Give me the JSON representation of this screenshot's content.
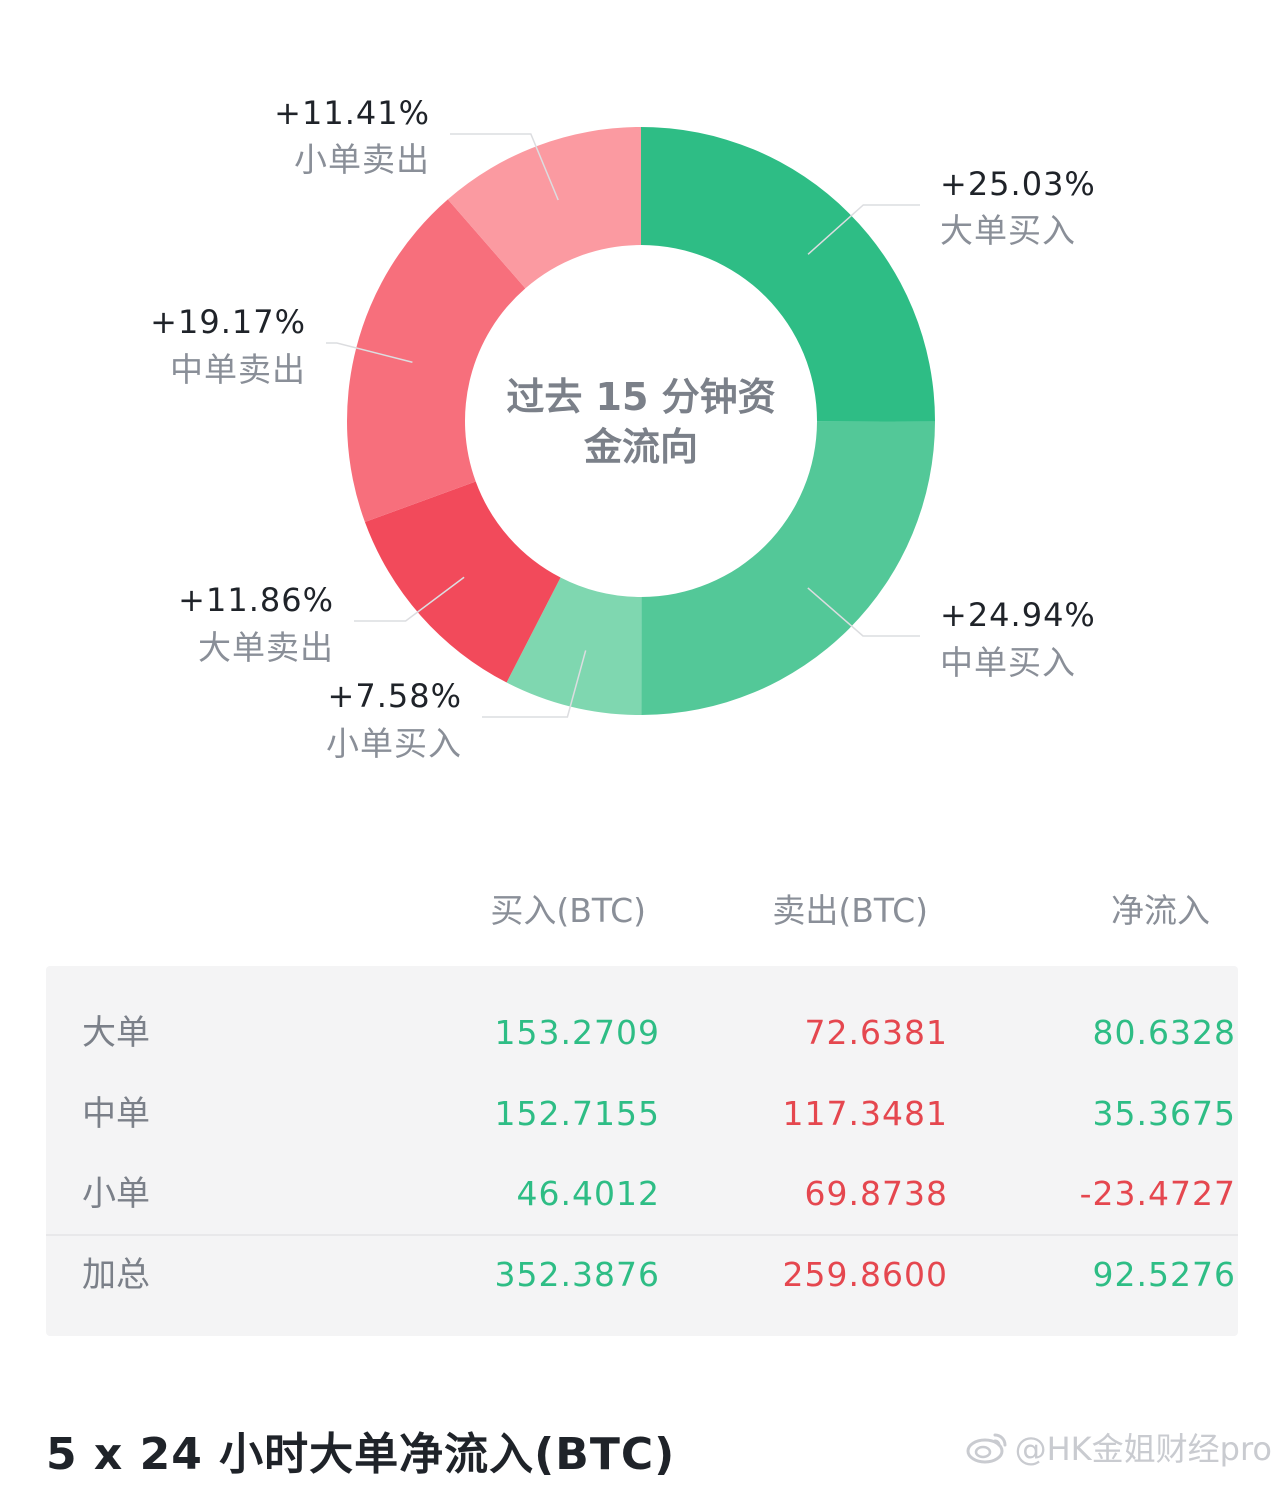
{
  "chart_data": {
    "type": "pie",
    "title": "过去 15 分钟资金流向",
    "title_lines": [
      "过去 15 分钟资",
      "金流向"
    ],
    "slices": [
      {
        "label": "大单买入",
        "value": 25.03,
        "pct_text": "+25.03%",
        "color": "#2ebd85"
      },
      {
        "label": "中单买入",
        "value": 24.94,
        "pct_text": "+24.94%",
        "color": "#53c898"
      },
      {
        "label": "小单买入",
        "value": 7.58,
        "pct_text": "+7.58%",
        "color": "#7fd7b0"
      },
      {
        "label": "大单卖出",
        "value": 11.86,
        "pct_text": "+11.86%",
        "color": "#f24a5b"
      },
      {
        "label": "中单卖出",
        "value": 19.17,
        "pct_text": "+19.17%",
        "color": "#f76f7c"
      },
      {
        "label": "小单卖出",
        "value": 11.41,
        "pct_text": "+11.41%",
        "color": "#fb9aa1"
      }
    ]
  },
  "table": {
    "headers": {
      "buy": "买入(BTC)",
      "sell": "卖出(BTC)",
      "net": "净流入"
    },
    "rows": [
      {
        "name": "大单",
        "buy": "153.2709",
        "sell": "72.6381",
        "net": "80.6328"
      },
      {
        "name": "中单",
        "buy": "152.7155",
        "sell": "117.3481",
        "net": "35.3675"
      },
      {
        "name": "小单",
        "buy": "46.4012",
        "sell": "69.8738",
        "net": "-23.4727"
      }
    ],
    "total": {
      "name": "加总",
      "buy": "352.3876",
      "sell": "259.8600",
      "net": "92.5276"
    }
  },
  "section_title": "5 x 24 小时大单净流入(BTC)",
  "watermark": "@HK金姐财经pro",
  "colors": {
    "green": "#2ebd85",
    "red": "#e5474f"
  }
}
